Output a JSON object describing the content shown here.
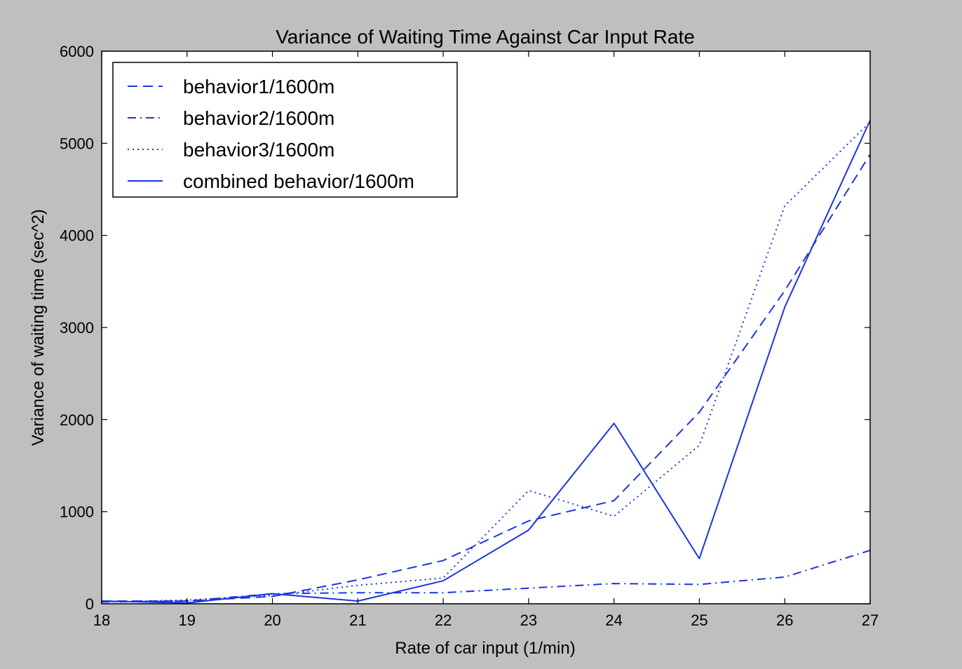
{
  "chart_data": {
    "type": "line",
    "title": "Variance of Waiting Time Against Car Input Rate",
    "xlabel": "Rate of car input (1/min)",
    "ylabel": "Variance of waiting time (sec^2)",
    "xlim": [
      18,
      27
    ],
    "ylim": [
      0,
      6000
    ],
    "x_ticks": [
      18,
      19,
      20,
      21,
      22,
      23,
      24,
      25,
      26,
      27
    ],
    "y_ticks": [
      0,
      1000,
      2000,
      3000,
      4000,
      5000,
      6000
    ],
    "grid": false,
    "legend_position": "top-left",
    "x": [
      18,
      19,
      20,
      21,
      22,
      23,
      24,
      25,
      26,
      27
    ],
    "series": [
      {
        "name": "behavior1/1600m",
        "style": "dashed",
        "color": "#1a35e0",
        "values": [
          30,
          30,
          80,
          260,
          470,
          900,
          1120,
          2080,
          3400,
          4880
        ]
      },
      {
        "name": "behavior2/1600m",
        "style": "dashdot",
        "color": "#1a35e0",
        "values": [
          20,
          30,
          110,
          120,
          120,
          170,
          220,
          210,
          290,
          580
        ]
      },
      {
        "name": "behavior3/1600m",
        "style": "dotted",
        "color": "#1a35e0",
        "values": [
          20,
          40,
          90,
          200,
          280,
          1230,
          950,
          1720,
          4320,
          5230
        ]
      },
      {
        "name": "combined behavior/1600m",
        "style": "solid",
        "color": "#1a35e0",
        "values": [
          30,
          10,
          110,
          30,
          250,
          800,
          1960,
          490,
          3220,
          5250
        ]
      }
    ]
  }
}
